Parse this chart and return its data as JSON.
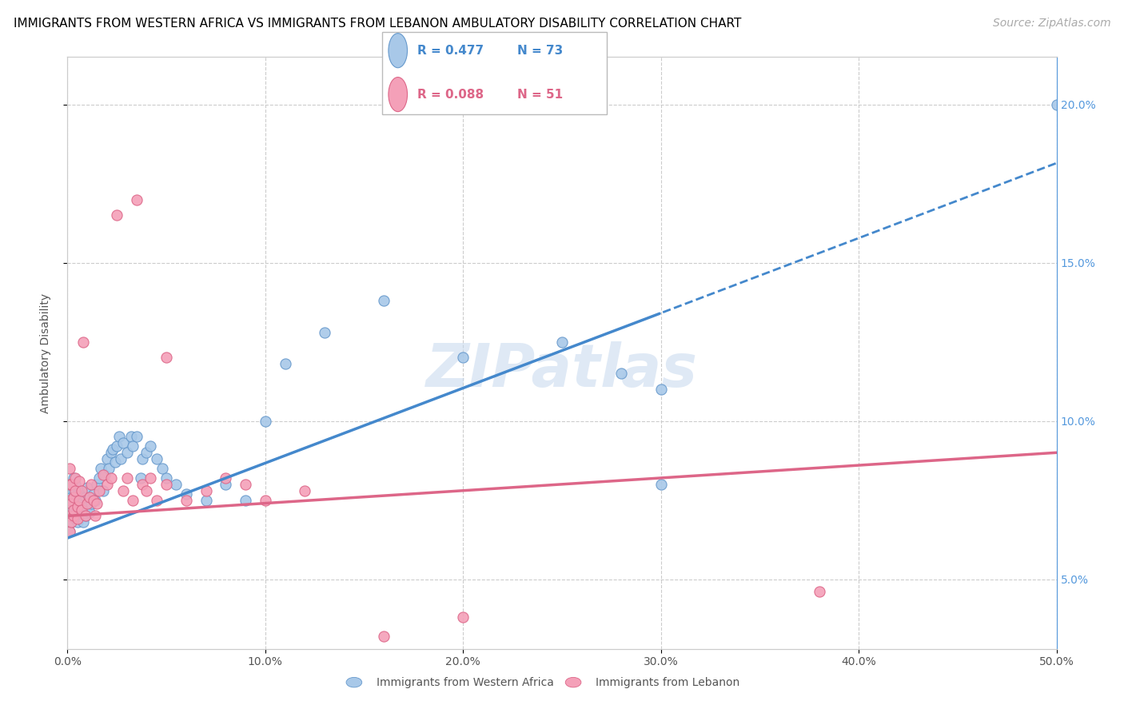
{
  "title": "IMMIGRANTS FROM WESTERN AFRICA VS IMMIGRANTS FROM LEBANON AMBULATORY DISABILITY CORRELATION CHART",
  "source": "Source: ZipAtlas.com",
  "ylabel": "Ambulatory Disability",
  "xlim": [
    0.0,
    0.5
  ],
  "ylim": [
    0.028,
    0.215
  ],
  "xticks": [
    0.0,
    0.1,
    0.2,
    0.3,
    0.4,
    0.5
  ],
  "xtick_labels": [
    "0.0%",
    "10.0%",
    "20.0%",
    "30.0%",
    "40.0%",
    "50.0%"
  ],
  "yticks": [
    0.05,
    0.1,
    0.15,
    0.2
  ],
  "ytick_labels": [
    "5.0%",
    "10.0%",
    "15.0%",
    "20.0%"
  ],
  "watermark": "ZIPatlas",
  "legend_R1": "R = 0.477",
  "legend_N1": "N = 73",
  "legend_R2": "R = 0.088",
  "legend_N2": "N = 51",
  "blue_color": "#a8c8e8",
  "blue_edge": "#6699cc",
  "pink_color": "#f4a0b8",
  "pink_edge": "#dd6688",
  "trend_blue": "#4488cc",
  "trend_pink": "#dd6688",
  "title_fontsize": 11,
  "axis_fontsize": 10,
  "tick_fontsize": 10,
  "source_fontsize": 10,
  "marker_size": 90,
  "wa_x": [
    0.001,
    0.001,
    0.001,
    0.001,
    0.001,
    0.002,
    0.002,
    0.002,
    0.002,
    0.003,
    0.003,
    0.003,
    0.003,
    0.004,
    0.004,
    0.004,
    0.005,
    0.005,
    0.005,
    0.006,
    0.006,
    0.007,
    0.007,
    0.008,
    0.008,
    0.009,
    0.009,
    0.01,
    0.01,
    0.011,
    0.012,
    0.013,
    0.014,
    0.015,
    0.016,
    0.017,
    0.018,
    0.019,
    0.02,
    0.021,
    0.022,
    0.023,
    0.024,
    0.025,
    0.026,
    0.027,
    0.028,
    0.03,
    0.032,
    0.033,
    0.035,
    0.037,
    0.038,
    0.04,
    0.042,
    0.045,
    0.048,
    0.05,
    0.055,
    0.06,
    0.07,
    0.08,
    0.09,
    0.1,
    0.11,
    0.13,
    0.16,
    0.2,
    0.25,
    0.28,
    0.3,
    0.3,
    0.5
  ],
  "wa_y": [
    0.065,
    0.07,
    0.075,
    0.08,
    0.072,
    0.068,
    0.074,
    0.08,
    0.076,
    0.07,
    0.075,
    0.082,
    0.078,
    0.069,
    0.074,
    0.08,
    0.073,
    0.068,
    0.077,
    0.072,
    0.078,
    0.071,
    0.076,
    0.068,
    0.073,
    0.07,
    0.076,
    0.073,
    0.079,
    0.071,
    0.074,
    0.077,
    0.075,
    0.08,
    0.082,
    0.085,
    0.078,
    0.083,
    0.088,
    0.085,
    0.09,
    0.091,
    0.087,
    0.092,
    0.095,
    0.088,
    0.093,
    0.09,
    0.095,
    0.092,
    0.095,
    0.082,
    0.088,
    0.09,
    0.092,
    0.088,
    0.085,
    0.082,
    0.08,
    0.077,
    0.075,
    0.08,
    0.075,
    0.1,
    0.118,
    0.128,
    0.138,
    0.12,
    0.125,
    0.115,
    0.11,
    0.08,
    0.2
  ],
  "lb_x": [
    0.001,
    0.001,
    0.001,
    0.001,
    0.001,
    0.002,
    0.002,
    0.002,
    0.003,
    0.003,
    0.003,
    0.004,
    0.004,
    0.005,
    0.005,
    0.006,
    0.006,
    0.007,
    0.007,
    0.008,
    0.009,
    0.01,
    0.011,
    0.012,
    0.013,
    0.014,
    0.015,
    0.016,
    0.018,
    0.02,
    0.022,
    0.025,
    0.028,
    0.03,
    0.033,
    0.035,
    0.038,
    0.04,
    0.042,
    0.045,
    0.05,
    0.06,
    0.07,
    0.08,
    0.09,
    0.1,
    0.12,
    0.16,
    0.2,
    0.38,
    0.05
  ],
  "lb_y": [
    0.065,
    0.07,
    0.075,
    0.08,
    0.085,
    0.068,
    0.074,
    0.08,
    0.07,
    0.076,
    0.072,
    0.078,
    0.082,
    0.073,
    0.069,
    0.075,
    0.081,
    0.072,
    0.078,
    0.125,
    0.07,
    0.074,
    0.076,
    0.08,
    0.075,
    0.07,
    0.074,
    0.078,
    0.083,
    0.08,
    0.082,
    0.165,
    0.078,
    0.082,
    0.075,
    0.17,
    0.08,
    0.078,
    0.082,
    0.075,
    0.08,
    0.075,
    0.078,
    0.082,
    0.08,
    0.075,
    0.078,
    0.032,
    0.038,
    0.046,
    0.12
  ]
}
